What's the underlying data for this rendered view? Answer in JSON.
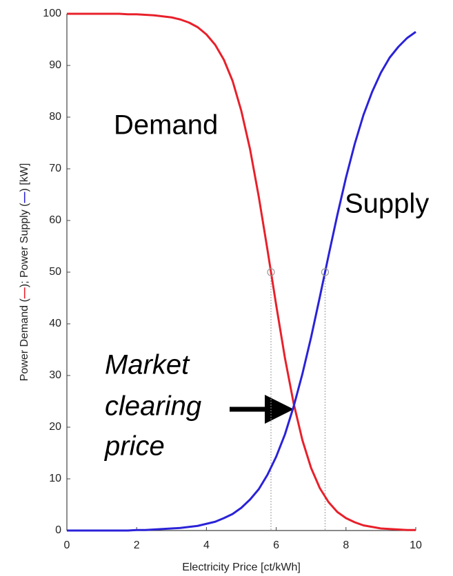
{
  "chart_data": {
    "type": "line",
    "x_label": "Electricity Price [ct/kWh]",
    "ylabel_parts": [
      "Power Demand (",
      "); Power Supply (",
      ") [kW]"
    ],
    "xlim": [
      0,
      10
    ],
    "ylim": [
      0,
      100
    ],
    "xticks": [
      0,
      2,
      4,
      6,
      8,
      10
    ],
    "yticks": [
      0,
      10,
      20,
      30,
      40,
      50,
      60,
      70,
      80,
      90,
      100
    ],
    "x": [
      0,
      0.25,
      0.5,
      0.75,
      1,
      1.25,
      1.5,
      1.75,
      2,
      2.25,
      2.5,
      2.75,
      3,
      3.25,
      3.5,
      3.75,
      4,
      4.25,
      4.5,
      4.75,
      5,
      5.25,
      5.5,
      5.75,
      6,
      6.25,
      6.5,
      6.75,
      7,
      7.25,
      7.5,
      7.75,
      8,
      8.25,
      8.5,
      8.75,
      9,
      9.25,
      9.5,
      9.75,
      10
    ],
    "series": [
      {
        "name": "Demand",
        "color": "#e8202a",
        "values": [
          100,
          100,
          100,
          100,
          100,
          100,
          100,
          99.9,
          99.9,
          99.8,
          99.7,
          99.5,
          99.3,
          98.9,
          98.3,
          97.4,
          96.0,
          94.0,
          91.1,
          87.0,
          81.2,
          73.8,
          64.6,
          54.3,
          43.6,
          33.4,
          24.6,
          17.5,
          12.1,
          8.2,
          5.5,
          3.6,
          2.4,
          1.6,
          1.0,
          0.7,
          0.4,
          0.3,
          0.2,
          0.1,
          0.1
        ]
      },
      {
        "name": "Supply",
        "color": "#2a22d8",
        "values": [
          0,
          0,
          0,
          0,
          0,
          0,
          0,
          0,
          0.1,
          0.1,
          0.2,
          0.3,
          0.4,
          0.5,
          0.7,
          0.9,
          1.3,
          1.7,
          2.4,
          3.2,
          4.4,
          6.0,
          8.0,
          10.8,
          14.3,
          18.6,
          24.0,
          30.3,
          37.4,
          45.2,
          53.2,
          61.0,
          68.3,
          74.8,
          80.4,
          84.9,
          88.6,
          91.5,
          93.6,
          95.3,
          96.5
        ]
      }
    ],
    "markers": [
      {
        "x": 5.85,
        "y": 50
      },
      {
        "x": 7.4,
        "y": 50
      }
    ],
    "annotations": {
      "demand": "Demand",
      "supply": "Supply",
      "clearing": [
        "Market",
        "clearing",
        "price"
      ]
    }
  }
}
